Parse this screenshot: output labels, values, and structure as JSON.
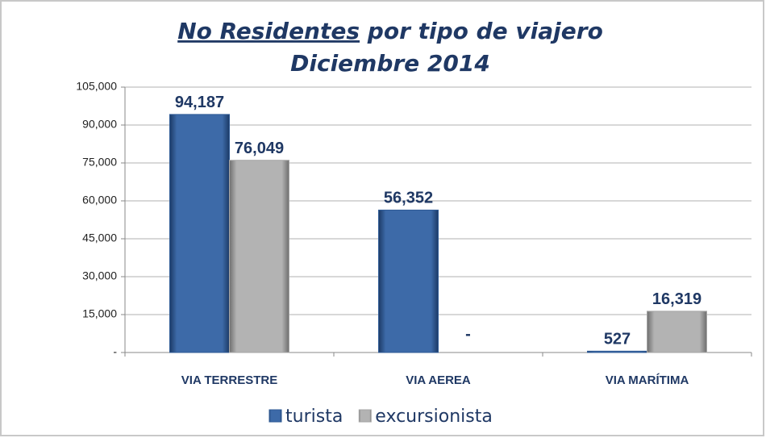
{
  "chart_data": {
    "type": "bar",
    "title": [
      "No Residentes",
      "por tipo de viajero"
    ],
    "subtitle": "Diciembre 2014",
    "categories": [
      "VIA TERRESTRE",
      "VIA AEREA",
      "VIA MARÍTIMA"
    ],
    "series": [
      {
        "name": "turista",
        "color": "#2f5b96",
        "values": [
          94187,
          56352,
          527
        ],
        "value_labels": [
          "94,187",
          "56,352",
          "527"
        ]
      },
      {
        "name": "excursionista",
        "color": "#a6a6a6",
        "values": [
          76049,
          0,
          16319
        ],
        "value_labels": [
          "76,049",
          "-",
          "16,319"
        ]
      }
    ],
    "ylim": [
      0,
      105000
    ],
    "yticks": [
      {
        "value": 0,
        "label": "-"
      },
      {
        "value": 15000,
        "label": "15,000"
      },
      {
        "value": 30000,
        "label": "30,000"
      },
      {
        "value": 45000,
        "label": "45,000"
      },
      {
        "value": 60000,
        "label": "60,000"
      },
      {
        "value": 75000,
        "label": "75,000"
      },
      {
        "value": 90000,
        "label": "90,000"
      },
      {
        "value": 105000,
        "label": "105,000"
      }
    ],
    "grid": true,
    "legend": "bottom"
  }
}
